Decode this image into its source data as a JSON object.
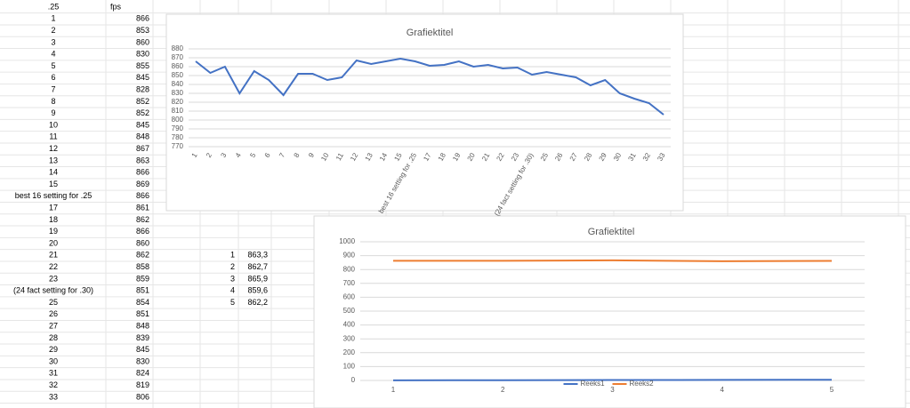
{
  "sheet": {
    "rows": [
      [
        ".25",
        "fps"
      ],
      [
        1,
        866
      ],
      [
        2,
        853
      ],
      [
        3,
        860
      ],
      [
        4,
        830
      ],
      [
        5,
        855
      ],
      [
        6,
        845
      ],
      [
        7,
        828
      ],
      [
        8,
        852
      ],
      [
        9,
        852
      ],
      [
        10,
        845
      ],
      [
        11,
        848
      ],
      [
        12,
        867
      ],
      [
        13,
        863
      ],
      [
        14,
        866
      ],
      [
        15,
        869
      ],
      [
        "best 16 setting for .25",
        866
      ],
      [
        17,
        861
      ],
      [
        18,
        862
      ],
      [
        19,
        866
      ],
      [
        20,
        860
      ],
      [
        21,
        862
      ],
      [
        22,
        858
      ],
      [
        23,
        859
      ],
      [
        "(24 fact setting for .30)",
        851
      ],
      [
        25,
        854
      ],
      [
        26,
        851
      ],
      [
        27,
        848
      ],
      [
        28,
        839
      ],
      [
        29,
        845
      ],
      [
        30,
        830
      ],
      [
        31,
        824
      ],
      [
        32,
        819
      ],
      [
        33,
        806
      ]
    ],
    "side": [
      [
        1,
        "863,3"
      ],
      [
        2,
        "862,7"
      ],
      [
        3,
        "865,9"
      ],
      [
        4,
        "859,6"
      ],
      [
        5,
        "862,2"
      ]
    ]
  },
  "chart_data": [
    {
      "type": "line",
      "title": "Grafiektitel",
      "categories": [
        "1",
        "2",
        "3",
        "4",
        "5",
        "6",
        "7",
        "8",
        "9",
        "10",
        "11",
        "12",
        "13",
        "14",
        "15",
        "best 16 setting for .25",
        "17",
        "18",
        "19",
        "20",
        "21",
        "22",
        "23",
        "(24 fact setting for .30)",
        "25",
        "26",
        "27",
        "28",
        "29",
        "30",
        "31",
        "32",
        "33"
      ],
      "series": [
        {
          "color": "#4472c4",
          "values": [
            866,
            853,
            860,
            830,
            855,
            845,
            828,
            852,
            852,
            845,
            848,
            867,
            863,
            866,
            869,
            866,
            861,
            862,
            866,
            860,
            862,
            858,
            859,
            851,
            854,
            851,
            848,
            839,
            845,
            830,
            824,
            819,
            806
          ]
        }
      ],
      "ylim": [
        770,
        880
      ],
      "yticks": [
        770,
        780,
        790,
        800,
        810,
        820,
        830,
        840,
        850,
        860,
        870,
        880
      ],
      "grid": true
    },
    {
      "type": "line",
      "title": "Grafiektitel",
      "categories": [
        "1",
        "2",
        "3",
        "4",
        "5"
      ],
      "series": [
        {
          "name": "Reeks1",
          "color": "#4472c4",
          "values": [
            1,
            2,
            3,
            4,
            5
          ]
        },
        {
          "name": "Reeks2",
          "color": "#ed7d31",
          "values": [
            863.3,
            862.7,
            865.9,
            859.6,
            862.2
          ]
        }
      ],
      "ylim": [
        0,
        1000
      ],
      "yticks": [
        0,
        100,
        200,
        300,
        400,
        500,
        600,
        700,
        800,
        900,
        1000
      ],
      "grid": true,
      "legend": "bottom"
    }
  ]
}
